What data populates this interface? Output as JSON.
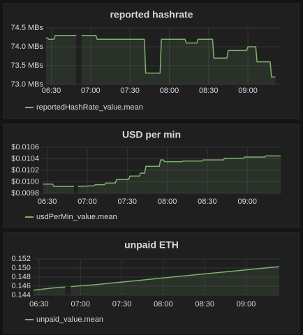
{
  "chart_data": [
    {
      "type": "line",
      "title": "reported hashrate",
      "x": [
        "06:26",
        "06:28",
        "06:32",
        "06:33",
        "06:49",
        "06:51",
        "06:53",
        "07:04",
        "07:05",
        "07:41",
        "07:42",
        "07:53",
        "07:54",
        "08:12",
        "08:13",
        "08:21",
        "08:22",
        "08:33",
        "08:34",
        "08:44",
        "08:45",
        "08:59",
        "09:00",
        "09:06",
        "09:07",
        "09:17",
        "09:18",
        "09:21"
      ],
      "series": [
        {
          "name": "reportedHashRate_value.mean",
          "color": "#7eb26d",
          "values": [
            74.25,
            74.2,
            74.2,
            74.3,
            74.3,
            null,
            74.3,
            74.3,
            74.2,
            74.2,
            73.3,
            73.3,
            74.2,
            74.2,
            74.1,
            74.1,
            74.2,
            74.2,
            73.7,
            73.7,
            73.9,
            73.9,
            74.0,
            74.0,
            73.6,
            73.6,
            73.2,
            73.2
          ]
        }
      ],
      "xlim": [
        "06:26",
        "09:25"
      ],
      "ylim": [
        73.0,
        74.5
      ],
      "xticks": [
        "06:30",
        "07:00",
        "07:30",
        "08:00",
        "08:30",
        "09:00"
      ],
      "yticks": [
        {
          "value": 74.5,
          "label": "74.5 MBs"
        },
        {
          "value": 74,
          "label": "74.0 MBs"
        },
        {
          "value": 73.5,
          "label": "73.5 MBs"
        },
        {
          "value": 73,
          "label": "73.0 MBs"
        }
      ],
      "grid": true
    },
    {
      "type": "line",
      "title": "USD per min",
      "x": [
        "06:27",
        "06:34",
        "06:35",
        "06:50",
        "06:52",
        "06:53",
        "07:05",
        "07:06",
        "07:13",
        "07:14",
        "07:21",
        "07:22",
        "07:31",
        "07:32",
        "07:39",
        "07:40",
        "07:43",
        "07:44",
        "07:54",
        "07:55",
        "07:57",
        "07:58",
        "08:11",
        "08:12",
        "08:26",
        "08:27",
        "08:42",
        "08:43",
        "08:57",
        "08:58",
        "09:13",
        "09:14",
        "09:25"
      ],
      "series": [
        {
          "name": "usdPerMin_value.mean",
          "color": "#7eb26d",
          "values": [
            0.00996,
            0.00996,
            0.00992,
            0.00992,
            null,
            0.00992,
            0.00993,
            0.00995,
            0.00995,
            0.00998,
            0.00998,
            0.01004,
            0.01004,
            0.0101,
            0.0101,
            0.01015,
            0.01015,
            0.01027,
            0.01027,
            0.01038,
            0.01038,
            0.01035,
            0.01035,
            0.01036,
            0.01036,
            0.01038,
            0.01038,
            0.01041,
            0.01041,
            0.01043,
            0.01043,
            0.01045,
            0.01045
          ]
        }
      ],
      "xlim": [
        "06:26",
        "09:25"
      ],
      "ylim": [
        0.0098,
        0.0106
      ],
      "xticks": [
        "06:30",
        "07:00",
        "07:30",
        "08:00",
        "08:30",
        "09:00"
      ],
      "yticks": [
        {
          "value": 0.0106,
          "label": "$0.0106"
        },
        {
          "value": 0.0104,
          "label": "$0.0104"
        },
        {
          "value": 0.0102,
          "label": "$0.0102"
        },
        {
          "value": 0.01,
          "label": "$0.0100"
        },
        {
          "value": 0.0098,
          "label": "$0.0098"
        }
      ],
      "grid": true
    },
    {
      "type": "line",
      "title": "unpaid ETH",
      "x": [
        "06:26",
        "06:40",
        "06:49",
        "06:51",
        "06:53",
        "07:10",
        "07:30",
        "07:50",
        "08:10",
        "08:30",
        "08:50",
        "09:10",
        "09:24"
      ],
      "series": [
        {
          "name": "unpaid_value.mean",
          "color": "#7eb26d",
          "values": [
            0.1451,
            0.1456,
            0.1458,
            null,
            0.1459,
            0.1463,
            0.1469,
            0.1475,
            0.1481,
            0.1487,
            0.1493,
            0.1499,
            0.1503
          ]
        }
      ],
      "xlim": [
        "06:26",
        "09:25"
      ],
      "ylim": [
        0.144,
        0.152
      ],
      "xticks": [
        "06:30",
        "07:00",
        "07:30",
        "08:00",
        "08:30",
        "09:00"
      ],
      "yticks": [
        0.152,
        {
          "value": 0.15,
          "label": "0.150"
        },
        0.148,
        0.146,
        0.144
      ],
      "grid": true
    }
  ]
}
